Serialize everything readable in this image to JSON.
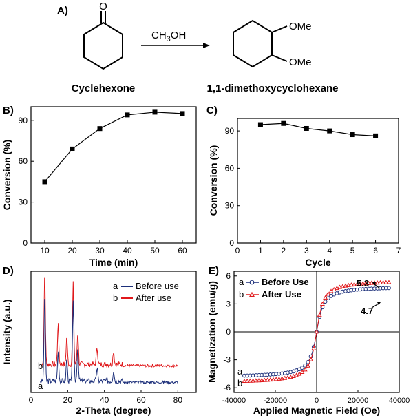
{
  "scheme": {
    "panel_label": "A)",
    "reactant_name": "Cyclehexone",
    "reagent": "CH3OH",
    "reagent_main": "CH",
    "reagent_sub": "3",
    "reagent_tail": "OH",
    "product_name": "1,1-dimethoxycyclohexane",
    "ome_top": "OMe",
    "ome_bottom": "OMe",
    "carbonyl_atom": "O"
  },
  "chart_data": [
    {
      "panel": "B)",
      "type": "line",
      "xlabel": "Time (min)",
      "ylabel": "Conversion (%)",
      "xlim": [
        5,
        65
      ],
      "ylim": [
        0,
        100
      ],
      "xticks": [
        "10",
        "20",
        "30",
        "40",
        "50",
        "60"
      ],
      "yticks": [
        "0",
        "30",
        "60",
        "90"
      ],
      "x": [
        10,
        20,
        30,
        40,
        50,
        60
      ],
      "values": [
        45,
        69,
        84,
        94,
        96,
        95
      ]
    },
    {
      "panel": "C)",
      "type": "line",
      "xlabel": "Cycle",
      "ylabel": "Conversion (%)",
      "xlim": [
        0,
        7
      ],
      "ylim": [
        0,
        100
      ],
      "xticks": [
        "0",
        "1",
        "2",
        "3",
        "4",
        "5",
        "6",
        "7"
      ],
      "yticks": [
        "0",
        "30",
        "60",
        "90"
      ],
      "x": [
        1,
        2,
        3,
        4,
        5,
        6
      ],
      "values": [
        95,
        96,
        92,
        90,
        87,
        86
      ]
    },
    {
      "panel": "D)",
      "type": "line",
      "xlabel": "2-Theta (degree)",
      "ylabel": "Intensity (a.u.)",
      "xlim": [
        0,
        90
      ],
      "xticks": [
        "0",
        "20",
        "40",
        "60",
        "80"
      ],
      "legend": [
        {
          "key": "a",
          "name": "Before use",
          "color": "#1c2f7a"
        },
        {
          "key": "b",
          "name": "After use",
          "color": "#e0181b"
        }
      ],
      "curve_labels": [
        "a",
        "b"
      ],
      "peaks": [
        {
          "x": 7.5,
          "a": 1.0,
          "b": 1.0
        },
        {
          "x": 14.8,
          "a": 0.35,
          "b": 0.45
        },
        {
          "x": 19.5,
          "a": 0.25,
          "b": 0.3
        },
        {
          "x": 23.0,
          "a": 0.95,
          "b": 0.9
        },
        {
          "x": 25.5,
          "a": 0.4,
          "b": 0.35
        },
        {
          "x": 36.0,
          "a": 0.15,
          "b": 0.2
        },
        {
          "x": 45.0,
          "a": 0.12,
          "b": 0.15
        }
      ]
    },
    {
      "panel": "E)",
      "type": "scatter",
      "xlabel": "Applied Magnetic Field (Oe)",
      "ylabel": "Magnetization (emu/g)",
      "xlim": [
        -40000,
        40000
      ],
      "ylim": [
        -6.5,
        6.5
      ],
      "xticks": [
        "-40000",
        "-20000",
        "0",
        "20000",
        "40000"
      ],
      "yticks": [
        "-6",
        "-3",
        "0",
        "3",
        "6"
      ],
      "legend": [
        {
          "key": "a",
          "name": "Before Use",
          "color": "#1c2f7a"
        },
        {
          "key": "b",
          "name": "After Use",
          "color": "#e0181b"
        }
      ],
      "series": [
        {
          "key": "a",
          "color": "#1c2f7a",
          "ms": 4.7
        },
        {
          "key": "b",
          "color": "#e0181b",
          "ms": 5.3
        }
      ],
      "annotations": [
        "5.3",
        "4.7"
      ],
      "curve_labels": [
        "a",
        "b"
      ]
    }
  ]
}
